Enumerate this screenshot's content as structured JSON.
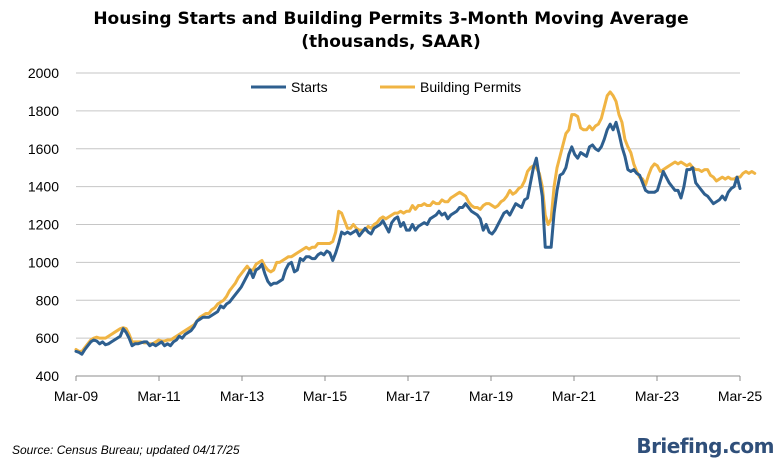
{
  "chart_data": {
    "type": "line",
    "title_line1": "Housing Starts and Building Permits 3-Month Moving Average",
    "title_line2": "(thousands, SAAR)",
    "xlabel": "",
    "ylabel": "",
    "ylim": [
      400,
      2000
    ],
    "y_ticks": [
      400,
      600,
      800,
      1000,
      1200,
      1400,
      1600,
      1800,
      2000
    ],
    "y_tick_labels": [
      "400",
      "600",
      "800",
      "1000",
      "1200",
      "1400",
      "1600",
      "1800",
      "2000"
    ],
    "x_tick_labels": [
      "Mar-09",
      "Mar-11",
      "Mar-13",
      "Mar-15",
      "Mar-17",
      "Mar-19",
      "Mar-21",
      "Mar-23",
      "Mar-25"
    ],
    "x_start": "Mar-09",
    "x_end": "Mar-25",
    "grid": true,
    "legend_position": "top-center",
    "colors": {
      "starts": "#2e5f8f",
      "permits": "#f0b443"
    },
    "series": [
      {
        "name": "Starts",
        "values": [
          530,
          525,
          515,
          540,
          560,
          580,
          590,
          585,
          570,
          580,
          565,
          570,
          580,
          590,
          600,
          610,
          650,
          630,
          600,
          560,
          570,
          570,
          575,
          580,
          580,
          560,
          570,
          560,
          570,
          580,
          560,
          570,
          560,
          580,
          590,
          610,
          600,
          620,
          630,
          640,
          660,
          690,
          700,
          710,
          710,
          710,
          720,
          730,
          740,
          770,
          760,
          780,
          790,
          810,
          830,
          850,
          870,
          900,
          930,
          960,
          920,
          960,
          970,
          990,
          940,
          900,
          880,
          890,
          890,
          900,
          910,
          960,
          990,
          1000,
          950,
          960,
          1020,
          1010,
          1030,
          1030,
          1020,
          1020,
          1040,
          1050,
          1040,
          1060,
          1050,
          1010,
          1050,
          1100,
          1160,
          1150,
          1160,
          1150,
          1160,
          1170,
          1140,
          1160,
          1180,
          1160,
          1150,
          1180,
          1190,
          1200,
          1220,
          1190,
          1160,
          1210,
          1230,
          1240,
          1190,
          1210,
          1170,
          1170,
          1200,
          1170,
          1190,
          1200,
          1210,
          1200,
          1230,
          1240,
          1250,
          1270,
          1250,
          1260,
          1230,
          1250,
          1260,
          1270,
          1290,
          1290,
          1310,
          1290,
          1270,
          1260,
          1250,
          1230,
          1170,
          1200,
          1160,
          1150,
          1170,
          1200,
          1230,
          1260,
          1270,
          1250,
          1280,
          1310,
          1300,
          1290,
          1330,
          1340,
          1420,
          1500,
          1550,
          1450,
          1350,
          1080,
          1080,
          1080,
          1260,
          1380,
          1460,
          1470,
          1500,
          1570,
          1610,
          1570,
          1550,
          1580,
          1570,
          1560,
          1610,
          1620,
          1600,
          1590,
          1610,
          1650,
          1700,
          1730,
          1700,
          1740,
          1680,
          1610,
          1560,
          1490,
          1480,
          1490,
          1470,
          1460,
          1420,
          1380,
          1370,
          1370,
          1370,
          1380,
          1430,
          1480,
          1450,
          1420,
          1400,
          1380,
          1380,
          1340,
          1400,
          1490,
          1490,
          1500,
          1420,
          1400,
          1380,
          1360,
          1350,
          1330,
          1310,
          1320,
          1330,
          1350,
          1330,
          1370,
          1390,
          1400,
          1450,
          1390
        ]
      },
      {
        "name": "Building Permits",
        "values": [
          540,
          530,
          530,
          550,
          570,
          590,
          600,
          605,
          600,
          600,
          600,
          610,
          620,
          630,
          640,
          650,
          655,
          650,
          620,
          580,
          580,
          580,
          580,
          575,
          575,
          570,
          570,
          580,
          590,
          585,
          585,
          590,
          590,
          600,
          610,
          620,
          630,
          640,
          650,
          660,
          670,
          690,
          710,
          720,
          730,
          730,
          750,
          760,
          780,
          790,
          800,
          820,
          850,
          870,
          890,
          920,
          940,
          960,
          980,
          960,
          960,
          990,
          1000,
          1010,
          980,
          960,
          950,
          960,
          1000,
          1000,
          1010,
          1020,
          1030,
          1030,
          1040,
          1050,
          1060,
          1070,
          1080,
          1070,
          1080,
          1080,
          1100,
          1100,
          1100,
          1100,
          1100,
          1110,
          1160,
          1270,
          1260,
          1220,
          1180,
          1180,
          1200,
          1180,
          1170,
          1170,
          1170,
          1190,
          1180,
          1200,
          1210,
          1230,
          1240,
          1230,
          1240,
          1250,
          1260,
          1260,
          1270,
          1260,
          1270,
          1270,
          1300,
          1280,
          1300,
          1300,
          1310,
          1300,
          1300,
          1320,
          1310,
          1310,
          1330,
          1320,
          1320,
          1340,
          1350,
          1360,
          1370,
          1360,
          1350,
          1320,
          1300,
          1290,
          1290,
          1280,
          1300,
          1310,
          1310,
          1300,
          1290,
          1300,
          1320,
          1330,
          1350,
          1380,
          1360,
          1370,
          1390,
          1400,
          1430,
          1480,
          1500,
          1510,
          1500,
          1470,
          1400,
          1250,
          1200,
          1230,
          1400,
          1500,
          1560,
          1620,
          1680,
          1700,
          1780,
          1780,
          1770,
          1710,
          1700,
          1700,
          1720,
          1700,
          1720,
          1730,
          1760,
          1820,
          1880,
          1900,
          1880,
          1850,
          1780,
          1740,
          1650,
          1610,
          1580,
          1520,
          1480,
          1450,
          1440,
          1410,
          1460,
          1500,
          1520,
          1510,
          1480,
          1490,
          1500,
          1510,
          1520,
          1530,
          1520,
          1530,
          1520,
          1510,
          1520,
          1500,
          1490,
          1490,
          1480,
          1490,
          1490,
          1460,
          1450,
          1430,
          1440,
          1450,
          1440,
          1450,
          1440,
          1440,
          1450,
          1450,
          1470,
          1480,
          1470,
          1480,
          1470
        ]
      }
    ]
  },
  "footer": {
    "source": "Source:  Census Bureau;  updated  04/17/25",
    "brand": "Briefing.com"
  }
}
